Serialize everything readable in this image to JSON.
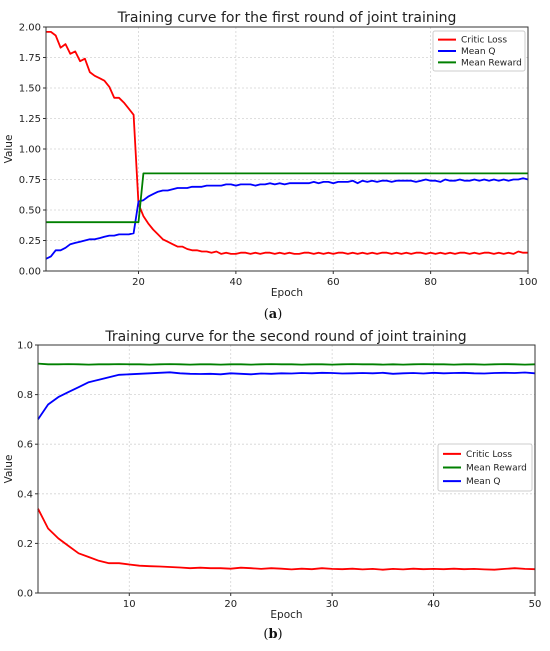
{
  "charts": [
    {
      "caption_open": "(",
      "caption_letter": "a",
      "caption_close": ")",
      "chart_data": {
        "type": "line",
        "title": "Training curve for the first round of joint training",
        "xlabel": "Epoch",
        "ylabel": "Value",
        "xlim": [
          1,
          100
        ],
        "ylim": [
          0,
          2.0
        ],
        "xticks": [
          20,
          40,
          60,
          80,
          100
        ],
        "yticks": [
          0.0,
          0.25,
          0.5,
          0.75,
          1.0,
          1.25,
          1.5,
          1.75,
          2.0
        ],
        "ytick_labels": [
          "0.00",
          "0.25",
          "0.50",
          "0.75",
          "1.00",
          "1.25",
          "1.50",
          "1.75",
          "2.00"
        ],
        "grid": true,
        "legend_position": "top-right",
        "series": [
          {
            "name": "Critic Loss",
            "color": "#ff0000",
            "x": [
              1,
              2,
              3,
              4,
              5,
              6,
              7,
              8,
              9,
              10,
              11,
              12,
              13,
              14,
              15,
              16,
              17,
              18,
              19,
              20,
              21,
              22,
              23,
              24,
              25,
              26,
              27,
              28,
              29,
              30,
              31,
              32,
              33,
              34,
              35,
              36,
              37,
              38,
              39,
              40,
              41,
              42,
              43,
              44,
              45,
              46,
              47,
              48,
              49,
              50,
              51,
              52,
              53,
              54,
              55,
              56,
              57,
              58,
              59,
              60,
              61,
              62,
              63,
              64,
              65,
              66,
              67,
              68,
              69,
              70,
              71,
              72,
              73,
              74,
              75,
              76,
              77,
              78,
              79,
              80,
              81,
              82,
              83,
              84,
              85,
              86,
              87,
              88,
              89,
              90,
              91,
              92,
              93,
              94,
              95,
              96,
              97,
              98,
              99,
              100
            ],
            "y": [
              1.96,
              1.96,
              1.93,
              1.83,
              1.86,
              1.78,
              1.8,
              1.72,
              1.74,
              1.63,
              1.6,
              1.58,
              1.56,
              1.51,
              1.42,
              1.42,
              1.38,
              1.33,
              1.28,
              0.55,
              0.45,
              0.39,
              0.34,
              0.3,
              0.26,
              0.24,
              0.22,
              0.2,
              0.2,
              0.18,
              0.17,
              0.17,
              0.16,
              0.16,
              0.15,
              0.16,
              0.14,
              0.15,
              0.14,
              0.14,
              0.15,
              0.15,
              0.14,
              0.15,
              0.14,
              0.15,
              0.15,
              0.14,
              0.15,
              0.14,
              0.15,
              0.14,
              0.14,
              0.15,
              0.15,
              0.14,
              0.15,
              0.14,
              0.15,
              0.14,
              0.15,
              0.15,
              0.14,
              0.15,
              0.14,
              0.15,
              0.14,
              0.15,
              0.14,
              0.15,
              0.15,
              0.14,
              0.15,
              0.14,
              0.15,
              0.14,
              0.15,
              0.15,
              0.14,
              0.15,
              0.14,
              0.15,
              0.14,
              0.15,
              0.14,
              0.15,
              0.15,
              0.14,
              0.15,
              0.14,
              0.15,
              0.15,
              0.14,
              0.15,
              0.14,
              0.15,
              0.14,
              0.16,
              0.15,
              0.15
            ]
          },
          {
            "name": "Mean Q",
            "color": "#0000ff",
            "x": [
              1,
              2,
              3,
              4,
              5,
              6,
              7,
              8,
              9,
              10,
              11,
              12,
              13,
              14,
              15,
              16,
              17,
              18,
              19,
              20,
              21,
              22,
              23,
              24,
              25,
              26,
              27,
              28,
              29,
              30,
              31,
              32,
              33,
              34,
              35,
              36,
              37,
              38,
              39,
              40,
              41,
              42,
              43,
              44,
              45,
              46,
              47,
              48,
              49,
              50,
              51,
              52,
              53,
              54,
              55,
              56,
              57,
              58,
              59,
              60,
              61,
              62,
              63,
              64,
              65,
              66,
              67,
              68,
              69,
              70,
              71,
              72,
              73,
              74,
              75,
              76,
              77,
              78,
              79,
              80,
              81,
              82,
              83,
              84,
              85,
              86,
              87,
              88,
              89,
              90,
              91,
              92,
              93,
              94,
              95,
              96,
              97,
              98,
              99,
              100
            ],
            "y": [
              0.1,
              0.12,
              0.17,
              0.17,
              0.19,
              0.22,
              0.23,
              0.24,
              0.25,
              0.26,
              0.26,
              0.27,
              0.28,
              0.29,
              0.29,
              0.3,
              0.3,
              0.3,
              0.31,
              0.57,
              0.58,
              0.61,
              0.63,
              0.65,
              0.66,
              0.66,
              0.67,
              0.68,
              0.68,
              0.68,
              0.69,
              0.69,
              0.69,
              0.7,
              0.7,
              0.7,
              0.7,
              0.71,
              0.71,
              0.7,
              0.71,
              0.71,
              0.71,
              0.7,
              0.71,
              0.71,
              0.72,
              0.71,
              0.72,
              0.71,
              0.72,
              0.72,
              0.72,
              0.72,
              0.72,
              0.73,
              0.72,
              0.73,
              0.73,
              0.72,
              0.73,
              0.73,
              0.73,
              0.74,
              0.72,
              0.74,
              0.73,
              0.74,
              0.73,
              0.74,
              0.74,
              0.73,
              0.74,
              0.74,
              0.74,
              0.74,
              0.73,
              0.74,
              0.75,
              0.74,
              0.74,
              0.73,
              0.75,
              0.74,
              0.74,
              0.75,
              0.74,
              0.74,
              0.75,
              0.74,
              0.75,
              0.74,
              0.75,
              0.74,
              0.75,
              0.74,
              0.75,
              0.75,
              0.76,
              0.75
            ]
          },
          {
            "name": "Mean Reward",
            "color": "#008000",
            "x": [
              1,
              2,
              3,
              4,
              5,
              6,
              7,
              8,
              9,
              10,
              11,
              12,
              13,
              14,
              15,
              16,
              17,
              18,
              19,
              20,
              21,
              22,
              23,
              24,
              25,
              26,
              27,
              28,
              29,
              30,
              31,
              32,
              33,
              34,
              35,
              36,
              37,
              38,
              39,
              40,
              41,
              42,
              43,
              44,
              45,
              46,
              47,
              48,
              49,
              50,
              51,
              52,
              53,
              54,
              55,
              56,
              57,
              58,
              59,
              60,
              61,
              62,
              63,
              64,
              65,
              66,
              67,
              68,
              69,
              70,
              71,
              72,
              73,
              74,
              75,
              76,
              77,
              78,
              79,
              80,
              81,
              82,
              83,
              84,
              85,
              86,
              87,
              88,
              89,
              90,
              91,
              92,
              93,
              94,
              95,
              96,
              97,
              98,
              99,
              100
            ],
            "y": [
              0.4,
              0.4,
              0.4,
              0.4,
              0.4,
              0.4,
              0.4,
              0.4,
              0.4,
              0.4,
              0.4,
              0.4,
              0.4,
              0.4,
              0.4,
              0.4,
              0.4,
              0.4,
              0.4,
              0.4,
              0.8,
              0.8,
              0.8,
              0.8,
              0.8,
              0.8,
              0.8,
              0.8,
              0.8,
              0.8,
              0.8,
              0.8,
              0.8,
              0.8,
              0.8,
              0.8,
              0.8,
              0.8,
              0.8,
              0.8,
              0.8,
              0.8,
              0.8,
              0.8,
              0.8,
              0.8,
              0.8,
              0.8,
              0.8,
              0.8,
              0.8,
              0.8,
              0.8,
              0.8,
              0.8,
              0.8,
              0.8,
              0.8,
              0.8,
              0.8,
              0.8,
              0.8,
              0.8,
              0.8,
              0.8,
              0.8,
              0.8,
              0.8,
              0.8,
              0.8,
              0.8,
              0.8,
              0.8,
              0.8,
              0.8,
              0.8,
              0.8,
              0.8,
              0.8,
              0.8,
              0.8,
              0.8,
              0.8,
              0.8,
              0.8,
              0.8,
              0.8,
              0.8,
              0.8,
              0.8,
              0.8,
              0.8,
              0.8,
              0.8,
              0.8,
              0.8,
              0.8,
              0.8,
              0.8,
              0.8
            ]
          }
        ]
      }
    },
    {
      "caption_open": "(",
      "caption_letter": "b",
      "caption_close": ")",
      "chart_data": {
        "type": "line",
        "title": "Training curve for the second round of joint training",
        "xlabel": "Epoch",
        "ylabel": "Value",
        "xlim": [
          1,
          50
        ],
        "ylim": [
          0,
          1.0
        ],
        "xticks": [
          10,
          20,
          30,
          40,
          50
        ],
        "yticks": [
          0.0,
          0.2,
          0.4,
          0.6,
          0.8,
          1.0
        ],
        "ytick_labels": [
          "0.0",
          "0.2",
          "0.4",
          "0.6",
          "0.8",
          "1.0"
        ],
        "grid": true,
        "legend_position": "center-right",
        "series": [
          {
            "name": "Critic Loss",
            "color": "#ff0000",
            "x": [
              1,
              2,
              3,
              4,
              5,
              6,
              7,
              8,
              9,
              10,
              11,
              12,
              13,
              14,
              15,
              16,
              17,
              18,
              19,
              20,
              21,
              22,
              23,
              24,
              25,
              26,
              27,
              28,
              29,
              30,
              31,
              32,
              33,
              34,
              35,
              36,
              37,
              38,
              39,
              40,
              41,
              42,
              43,
              44,
              45,
              46,
              47,
              48,
              49,
              50
            ],
            "y": [
              0.34,
              0.26,
              0.22,
              0.19,
              0.16,
              0.145,
              0.13,
              0.12,
              0.12,
              0.115,
              0.11,
              0.108,
              0.107,
              0.105,
              0.103,
              0.1,
              0.102,
              0.1,
              0.1,
              0.098,
              0.102,
              0.1,
              0.097,
              0.1,
              0.098,
              0.095,
              0.098,
              0.096,
              0.1,
              0.097,
              0.096,
              0.098,
              0.095,
              0.097,
              0.094,
              0.097,
              0.095,
              0.098,
              0.096,
              0.097,
              0.096,
              0.098,
              0.096,
              0.097,
              0.095,
              0.094,
              0.097,
              0.1,
              0.097,
              0.096
            ]
          },
          {
            "name": "Mean Reward",
            "color": "#008000",
            "x": [
              1,
              2,
              3,
              4,
              5,
              6,
              7,
              8,
              9,
              10,
              11,
              12,
              13,
              14,
              15,
              16,
              17,
              18,
              19,
              20,
              21,
              22,
              23,
              24,
              25,
              26,
              27,
              28,
              29,
              30,
              31,
              32,
              33,
              34,
              35,
              36,
              37,
              38,
              39,
              40,
              41,
              42,
              43,
              44,
              45,
              46,
              47,
              48,
              49,
              50
            ],
            "y": [
              0.925,
              0.922,
              0.922,
              0.923,
              0.922,
              0.921,
              0.922,
              0.922,
              0.923,
              0.922,
              0.922,
              0.921,
              0.922,
              0.923,
              0.922,
              0.921,
              0.922,
              0.922,
              0.921,
              0.922,
              0.922,
              0.921,
              0.922,
              0.923,
              0.922,
              0.922,
              0.921,
              0.922,
              0.922,
              0.921,
              0.922,
              0.923,
              0.922,
              0.922,
              0.921,
              0.922,
              0.921,
              0.922,
              0.923,
              0.922,
              0.922,
              0.921,
              0.922,
              0.922,
              0.921,
              0.922,
              0.923,
              0.922,
              0.921,
              0.922
            ]
          },
          {
            "name": "Mean Q",
            "color": "#0000ff",
            "x": [
              1,
              2,
              3,
              4,
              5,
              6,
              7,
              8,
              9,
              10,
              11,
              12,
              13,
              14,
              15,
              16,
              17,
              18,
              19,
              20,
              21,
              22,
              23,
              24,
              25,
              26,
              27,
              28,
              29,
              30,
              31,
              32,
              33,
              34,
              35,
              36,
              37,
              38,
              39,
              40,
              41,
              42,
              43,
              44,
              45,
              46,
              47,
              48,
              49,
              50
            ],
            "y": [
              0.7,
              0.76,
              0.79,
              0.81,
              0.83,
              0.85,
              0.86,
              0.87,
              0.88,
              0.882,
              0.884,
              0.886,
              0.888,
              0.89,
              0.886,
              0.884,
              0.883,
              0.884,
              0.882,
              0.886,
              0.884,
              0.882,
              0.885,
              0.884,
              0.886,
              0.885,
              0.887,
              0.886,
              0.888,
              0.887,
              0.885,
              0.886,
              0.887,
              0.886,
              0.888,
              0.884,
              0.886,
              0.887,
              0.885,
              0.888,
              0.886,
              0.887,
              0.888,
              0.886,
              0.885,
              0.887,
              0.888,
              0.887,
              0.889,
              0.886
            ]
          }
        ]
      }
    }
  ]
}
